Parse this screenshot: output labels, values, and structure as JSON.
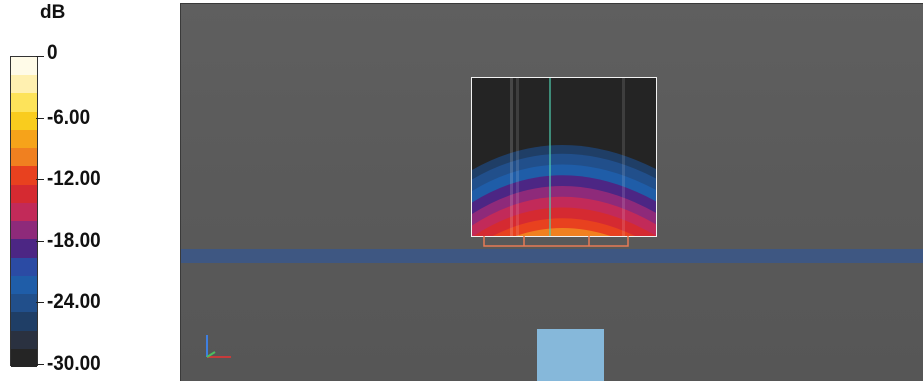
{
  "legend": {
    "unit": "dB",
    "labels": [
      "0",
      "-6.00",
      "-12.00",
      "-18.00",
      "-24.00",
      "-30.00"
    ],
    "colors": [
      "#fffbe8",
      "#fff0b0",
      "#fde35a",
      "#f9cc1e",
      "#f6a31a",
      "#f08020",
      "#e8411f",
      "#d52a31",
      "#c22a59",
      "#8e2a7a",
      "#4c2684",
      "#2b4ba4",
      "#1f5da8",
      "#214f8b",
      "#1f3e66",
      "#2a3140",
      "#252525"
    ]
  },
  "viewport": {
    "background": "#5a5a5a",
    "horizon_color": "#3e5782",
    "block_color": "#86b8da",
    "bracket_color": "#e87a55",
    "center_line_color": "#4fd0b0"
  },
  "field": {
    "contour_colors": [
      "#f7b51a",
      "#f08020",
      "#e8411f",
      "#d52a31",
      "#c22a59",
      "#8e2a7a",
      "#4c2684",
      "#1f5da8",
      "#214f8b",
      "#1f3e66"
    ]
  }
}
